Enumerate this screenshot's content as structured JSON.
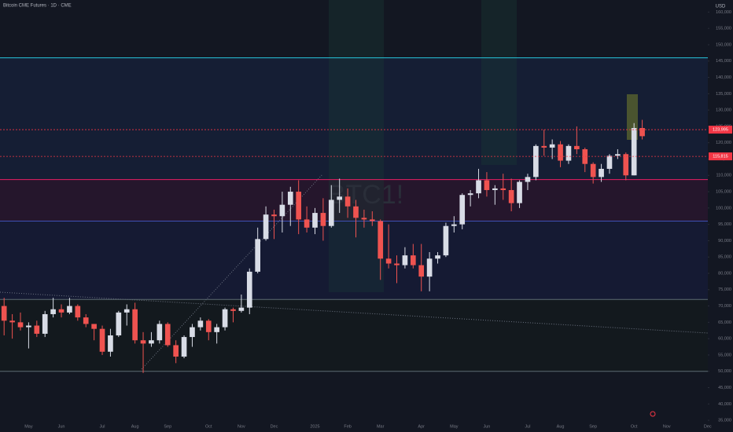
{
  "chart_data": {
    "type": "candlestick",
    "title": "Bitcoin CME Futures · 1D · CME",
    "symbol": "BTC1!",
    "currency": "USD",
    "up_color": "#d8dce6",
    "down_color": "#ef5350",
    "categories": [
      null,
      null,
      null,
      "May",
      null,
      null,
      null,
      "Jun",
      null,
      null,
      null,
      null,
      "Jul",
      null,
      null,
      null,
      "Aug",
      null,
      null,
      null,
      "Sep",
      null,
      null,
      null,
      null,
      "Oct",
      null,
      null,
      null,
      "Nov",
      null,
      null,
      null,
      "Dec",
      null,
      null,
      null,
      null,
      "2025",
      null,
      null,
      null,
      "Feb",
      null,
      null,
      null,
      "Mar",
      null,
      null,
      null,
      null,
      "Apr",
      null,
      null,
      null,
      "May",
      null,
      null,
      null,
      "Jun",
      null,
      null,
      null,
      null,
      "Jul",
      null,
      null,
      null,
      "Aug",
      null,
      null,
      null,
      "Sep",
      null,
      null,
      null,
      null,
      "Oct",
      null,
      null,
      null,
      "Nov",
      null,
      null,
      null,
      null,
      "Dec"
    ],
    "open": [
      70000,
      65500,
      65000,
      63500,
      64000,
      61500,
      67500,
      69000,
      68000,
      70000,
      66500,
      64500,
      63000,
      56000,
      61000,
      68000,
      69000,
      59500,
      58500,
      59500,
      64500,
      58000,
      54500,
      60500,
      63500,
      65500,
      62000,
      63500,
      69000,
      68500,
      69500,
      80500,
      90500,
      98000,
      97500,
      101000,
      105000,
      96500,
      94000,
      98500,
      94500,
      102500,
      103500,
      100500,
      97000,
      96500,
      96000,
      84500,
      83000,
      82500,
      85500,
      82500,
      79000,
      84500,
      85500,
      94500,
      95000,
      104000,
      104500,
      108500,
      105500,
      106000,
      105500,
      101500,
      108000,
      109500,
      119000,
      118500,
      119500,
      114500,
      119000,
      118000,
      113500,
      109500,
      112000,
      116000,
      116500,
      110000,
      124500,
      null,
      null,
      null,
      null,
      null,
      null,
      null,
      null
    ],
    "high": [
      72500,
      67500,
      68000,
      65000,
      65500,
      68500,
      72500,
      70500,
      72500,
      70500,
      67500,
      64500,
      64000,
      63000,
      68500,
      70500,
      71000,
      62000,
      62000,
      65500,
      65000,
      59500,
      61000,
      64500,
      66500,
      66000,
      64500,
      69500,
      69500,
      73500,
      81500,
      94000,
      100500,
      99500,
      105000,
      106500,
      108500,
      100500,
      100000,
      103000,
      107000,
      109000,
      106000,
      102500,
      99500,
      99000,
      96500,
      95000,
      85500,
      88000,
      89000,
      89000,
      86500,
      86500,
      95500,
      97500,
      104500,
      105500,
      112000,
      111000,
      107000,
      110500,
      109000,
      108500,
      110500,
      119500,
      124000,
      121000,
      120500,
      119500,
      125000,
      118500,
      114000,
      113500,
      116500,
      118000,
      117000,
      126000,
      127000,
      null,
      null,
      null,
      null,
      null,
      null,
      null,
      null
    ],
    "low": [
      61000,
      60000,
      62500,
      57000,
      60500,
      60500,
      66500,
      66500,
      67500,
      65500,
      63500,
      59500,
      55000,
      54500,
      60500,
      64000,
      58500,
      49500,
      57500,
      58500,
      57500,
      52500,
      54000,
      57500,
      62500,
      59500,
      58500,
      62500,
      65000,
      68000,
      67500,
      80000,
      90000,
      90500,
      92500,
      94500,
      92000,
      92500,
      92000,
      90000,
      94000,
      98500,
      97000,
      91000,
      94000,
      94500,
      78000,
      81500,
      77000,
      81500,
      81500,
      74500,
      74500,
      83000,
      85000,
      92500,
      93500,
      100500,
      103000,
      103500,
      101000,
      102500,
      99000,
      100000,
      105500,
      108500,
      116000,
      115000,
      112500,
      113500,
      116500,
      111000,
      107500,
      108000,
      110500,
      115000,
      108500,
      110000,
      121000,
      null,
      null,
      null,
      null,
      null,
      null,
      null,
      null
    ],
    "close": [
      65500,
      65000,
      63500,
      64000,
      61500,
      67500,
      69000,
      68000,
      70000,
      66500,
      64500,
      63000,
      56000,
      61000,
      68000,
      69000,
      59500,
      58500,
      59500,
      64500,
      58000,
      54500,
      60500,
      63500,
      65500,
      62000,
      63500,
      69000,
      68500,
      69500,
      80500,
      90500,
      98000,
      97500,
      101000,
      105000,
      96500,
      94000,
      98500,
      94500,
      102500,
      103500,
      100500,
      97000,
      96500,
      96000,
      84500,
      83000,
      82500,
      85500,
      82500,
      79000,
      84500,
      85500,
      94500,
      95000,
      104000,
      104500,
      108500,
      105500,
      106000,
      105500,
      101500,
      108000,
      109500,
      119000,
      118500,
      119500,
      114500,
      119000,
      118000,
      113500,
      109500,
      112000,
      116000,
      116500,
      110000,
      124500,
      122000,
      null,
      null,
      null,
      null,
      null,
      null,
      null,
      null
    ],
    "levels": [
      {
        "value": 146000,
        "color": "#26c6da"
      },
      {
        "value": 108700,
        "color": "#e91e63"
      },
      {
        "value": 96000,
        "color": "#3f51b5"
      },
      {
        "value": 72000,
        "color": "#5d6b73"
      },
      {
        "value": 50000,
        "color": "#5d6b73"
      }
    ],
    "price_lines": [
      {
        "value": 123995,
        "label": "123,995",
        "color": "#f23645"
      },
      {
        "value": 115815,
        "label": "115,815",
        "color": "#f23645"
      }
    ],
    "ylim": [
      34300,
      163700
    ],
    "yticks": [
      {
        "value": 35000,
        "label": "35,000"
      },
      {
        "value": 40000,
        "label": "40,000"
      },
      {
        "value": 45000,
        "label": "45,000"
      },
      {
        "value": 50000,
        "label": "50,000"
      },
      {
        "value": 55000,
        "label": "55,000"
      },
      {
        "value": 60000,
        "label": "60,000"
      },
      {
        "value": 65000,
        "label": "65,000"
      },
      {
        "value": 70000,
        "label": "70,000"
      },
      {
        "value": 75000,
        "label": "75,000"
      },
      {
        "value": 80000,
        "label": "80,000"
      },
      {
        "value": 85000,
        "label": "85,000"
      },
      {
        "value": 90000,
        "label": "90,000"
      },
      {
        "value": 95000,
        "label": "95,000"
      },
      {
        "value": 100000,
        "label": "100,000"
      },
      {
        "value": 105000,
        "label": "105,000"
      },
      {
        "value": 110000,
        "label": "110,000"
      },
      {
        "value": 115000,
        "label": "115,000"
      },
      {
        "value": 120000,
        "label": "120,000"
      },
      {
        "value": 125000,
        "label": "125,000"
      },
      {
        "value": 130000,
        "label": "130,000"
      },
      {
        "value": 135000,
        "label": "135,000"
      },
      {
        "value": 140000,
        "label": "140,000"
      },
      {
        "value": 145000,
        "label": "145,000"
      },
      {
        "value": 150000,
        "label": "150,000"
      },
      {
        "value": 155000,
        "label": "155,000"
      },
      {
        "value": 160000,
        "label": "160,000"
      }
    ]
  }
}
